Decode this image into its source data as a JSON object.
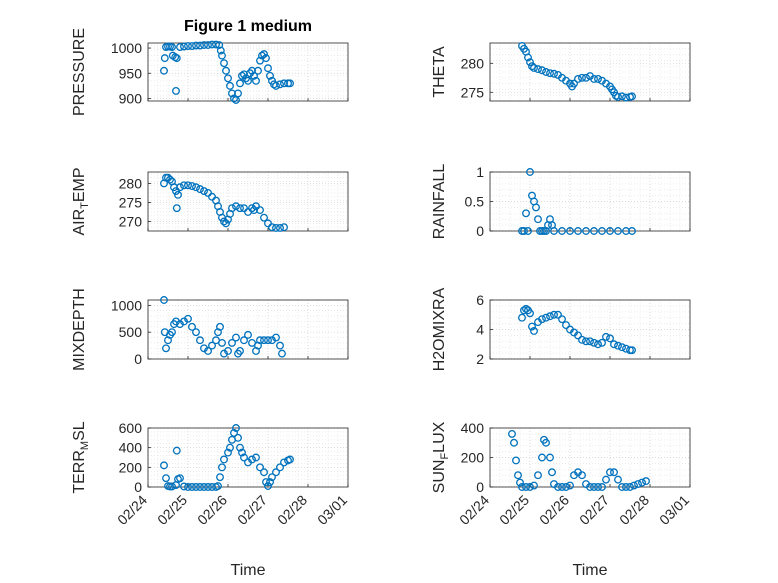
{
  "figure_title": "Figure 1 medium",
  "marker_color": "#0072BD",
  "x_axis": {
    "label": "Time",
    "tick_labels": [
      "02/24",
      "02/25",
      "02/26",
      "02/27",
      "02/28",
      "03/01"
    ]
  },
  "chart_data": [
    {
      "type": "scatter",
      "title": "Figure 1 medium",
      "ylabel": "PRESSURE",
      "ylim": [
        895,
        1010
      ],
      "yticks": [
        900,
        950,
        1000
      ],
      "grid": true,
      "x_unit": "days",
      "points": [
        [
          0.4,
          955
        ],
        [
          0.42,
          980
        ],
        [
          0.45,
          1002
        ],
        [
          0.5,
          1003
        ],
        [
          0.55,
          1003
        ],
        [
          0.6,
          1002
        ],
        [
          0.62,
          985
        ],
        [
          0.68,
          982
        ],
        [
          0.72,
          980
        ],
        [
          0.7,
          915
        ],
        [
          0.8,
          1002
        ],
        [
          0.9,
          1003
        ],
        [
          1.0,
          1004
        ],
        [
          1.1,
          1004
        ],
        [
          1.2,
          1005
        ],
        [
          1.3,
          1005
        ],
        [
          1.4,
          1006
        ],
        [
          1.5,
          1006
        ],
        [
          1.6,
          1007
        ],
        [
          1.7,
          1007
        ],
        [
          1.78,
          1006
        ],
        [
          1.82,
          995
        ],
        [
          1.85,
          985
        ],
        [
          1.9,
          970
        ],
        [
          1.95,
          955
        ],
        [
          2.0,
          940
        ],
        [
          2.05,
          925
        ],
        [
          2.1,
          910
        ],
        [
          2.15,
          900
        ],
        [
          2.2,
          897
        ],
        [
          2.25,
          910
        ],
        [
          2.3,
          930
        ],
        [
          2.35,
          945
        ],
        [
          2.4,
          948
        ],
        [
          2.45,
          940
        ],
        [
          2.5,
          935
        ],
        [
          2.55,
          950
        ],
        [
          2.6,
          955
        ],
        [
          2.65,
          945
        ],
        [
          2.7,
          935
        ],
        [
          2.75,
          955
        ],
        [
          2.8,
          975
        ],
        [
          2.85,
          985
        ],
        [
          2.9,
          988
        ],
        [
          2.95,
          980
        ],
        [
          3.0,
          960
        ],
        [
          3.05,
          945
        ],
        [
          3.1,
          935
        ],
        [
          3.15,
          928
        ],
        [
          3.2,
          925
        ],
        [
          3.3,
          928
        ],
        [
          3.4,
          930
        ],
        [
          3.5,
          930
        ],
        [
          3.55,
          930
        ]
      ]
    },
    {
      "type": "scatter",
      "ylabel": "THETA",
      "ylim": [
        273.5,
        283.5
      ],
      "yticks": [
        275,
        280
      ],
      "grid": true,
      "x_unit": "days",
      "points": [
        [
          0.8,
          283
        ],
        [
          0.85,
          282.5
        ],
        [
          0.9,
          282
        ],
        [
          0.95,
          281
        ],
        [
          1.0,
          280.2
        ],
        [
          1.05,
          279.5
        ],
        [
          1.1,
          279.2
        ],
        [
          1.2,
          279
        ],
        [
          1.3,
          278.8
        ],
        [
          1.4,
          278.5
        ],
        [
          1.5,
          278.3
        ],
        [
          1.6,
          278.2
        ],
        [
          1.7,
          278
        ],
        [
          1.8,
          277.5
        ],
        [
          1.9,
          277
        ],
        [
          2.0,
          276.5
        ],
        [
          2.05,
          276
        ],
        [
          2.1,
          276.5
        ],
        [
          2.2,
          277.3
        ],
        [
          2.3,
          277.5
        ],
        [
          2.4,
          277.5
        ],
        [
          2.5,
          277.8
        ],
        [
          2.6,
          277.3
        ],
        [
          2.7,
          277.3
        ],
        [
          2.8,
          277
        ],
        [
          2.9,
          276.5
        ],
        [
          3.0,
          276
        ],
        [
          3.05,
          275.5
        ],
        [
          3.1,
          275
        ],
        [
          3.15,
          274.4
        ],
        [
          3.2,
          274.2
        ],
        [
          3.3,
          274.3
        ],
        [
          3.4,
          274.1
        ],
        [
          3.5,
          274.2
        ],
        [
          3.55,
          274.3
        ]
      ]
    },
    {
      "type": "scatter",
      "ylabel": "AIR_TEMP",
      "ylim": [
        267.5,
        283
      ],
      "yticks": [
        270,
        275,
        280
      ],
      "grid": true,
      "x_unit": "days",
      "points": [
        [
          0.4,
          280
        ],
        [
          0.45,
          281.5
        ],
        [
          0.5,
          281.5
        ],
        [
          0.55,
          281
        ],
        [
          0.6,
          280.5
        ],
        [
          0.65,
          279
        ],
        [
          0.7,
          278
        ],
        [
          0.72,
          273.5
        ],
        [
          0.75,
          277
        ],
        [
          0.8,
          279
        ],
        [
          0.9,
          279.5
        ],
        [
          1.0,
          279.5
        ],
        [
          1.1,
          279.3
        ],
        [
          1.2,
          279
        ],
        [
          1.3,
          278.5
        ],
        [
          1.4,
          278
        ],
        [
          1.5,
          277.5
        ],
        [
          1.6,
          276.5
        ],
        [
          1.7,
          275.5
        ],
        [
          1.75,
          274
        ],
        [
          1.8,
          272.5
        ],
        [
          1.85,
          271
        ],
        [
          1.9,
          270
        ],
        [
          1.95,
          269.5
        ],
        [
          2.0,
          270.5
        ],
        [
          2.05,
          272
        ],
        [
          2.1,
          273.5
        ],
        [
          2.2,
          274
        ],
        [
          2.3,
          273.5
        ],
        [
          2.4,
          273.5
        ],
        [
          2.5,
          272.5
        ],
        [
          2.6,
          273.5
        ],
        [
          2.65,
          273
        ],
        [
          2.7,
          274
        ],
        [
          2.8,
          273
        ],
        [
          2.9,
          271
        ],
        [
          3.0,
          269.5
        ],
        [
          3.1,
          268.5
        ],
        [
          3.2,
          268.3
        ],
        [
          3.3,
          268.3
        ],
        [
          3.4,
          268.5
        ]
      ]
    },
    {
      "type": "scatter",
      "ylabel": "RAINFALL",
      "ylim": [
        0,
        1
      ],
      "yticks": [
        0,
        0.5,
        1
      ],
      "grid": true,
      "x_unit": "days",
      "points": [
        [
          0.8,
          0
        ],
        [
          0.85,
          0
        ],
        [
          0.9,
          0.3
        ],
        [
          0.95,
          0
        ],
        [
          1.0,
          1.0
        ],
        [
          1.05,
          0.6
        ],
        [
          1.1,
          0.5
        ],
        [
          1.15,
          0.4
        ],
        [
          1.2,
          0.2
        ],
        [
          1.25,
          0
        ],
        [
          1.3,
          0
        ],
        [
          1.35,
          0
        ],
        [
          1.4,
          0
        ],
        [
          1.45,
          0.1
        ],
        [
          1.5,
          0.2
        ],
        [
          1.55,
          0.1
        ],
        [
          1.6,
          0
        ],
        [
          1.8,
          0
        ],
        [
          2.0,
          0
        ],
        [
          2.2,
          0
        ],
        [
          2.4,
          0
        ],
        [
          2.6,
          0
        ],
        [
          2.8,
          0
        ],
        [
          3.0,
          0
        ],
        [
          3.2,
          0
        ],
        [
          3.4,
          0
        ],
        [
          3.55,
          0
        ]
      ]
    },
    {
      "type": "scatter",
      "ylabel": "MIXDEPTH",
      "ylim": [
        0,
        1100
      ],
      "yticks": [
        0,
        500,
        1000
      ],
      "grid": true,
      "x_unit": "days",
      "points": [
        [
          0.4,
          1100
        ],
        [
          0.42,
          500
        ],
        [
          0.45,
          200
        ],
        [
          0.5,
          350
        ],
        [
          0.55,
          450
        ],
        [
          0.6,
          500
        ],
        [
          0.65,
          650
        ],
        [
          0.7,
          700
        ],
        [
          0.8,
          650
        ],
        [
          0.9,
          700
        ],
        [
          1.0,
          750
        ],
        [
          1.1,
          600
        ],
        [
          1.2,
          500
        ],
        [
          1.3,
          350
        ],
        [
          1.4,
          200
        ],
        [
          1.5,
          150
        ],
        [
          1.6,
          250
        ],
        [
          1.7,
          350
        ],
        [
          1.75,
          500
        ],
        [
          1.8,
          600
        ],
        [
          1.85,
          300
        ],
        [
          1.9,
          100
        ],
        [
          2.0,
          150
        ],
        [
          2.1,
          300
        ],
        [
          2.2,
          400
        ],
        [
          2.25,
          100
        ],
        [
          2.3,
          150
        ],
        [
          2.4,
          350
        ],
        [
          2.5,
          450
        ],
        [
          2.6,
          300
        ],
        [
          2.7,
          150
        ],
        [
          2.75,
          250
        ],
        [
          2.8,
          350
        ],
        [
          2.9,
          350
        ],
        [
          3.0,
          350
        ],
        [
          3.1,
          350
        ],
        [
          3.2,
          400
        ],
        [
          3.3,
          250
        ],
        [
          3.35,
          100
        ]
      ]
    },
    {
      "type": "scatter",
      "ylabel": "H2OMIXRA",
      "ylim": [
        2,
        6
      ],
      "yticks": [
        2,
        4,
        6
      ],
      "grid": true,
      "x_unit": "days",
      "points": [
        [
          0.8,
          4.8
        ],
        [
          0.85,
          5.3
        ],
        [
          0.9,
          5.4
        ],
        [
          0.95,
          5.3
        ],
        [
          1.0,
          5.1
        ],
        [
          1.05,
          4.2
        ],
        [
          1.1,
          3.9
        ],
        [
          1.2,
          4.5
        ],
        [
          1.3,
          4.7
        ],
        [
          1.4,
          4.8
        ],
        [
          1.5,
          4.9
        ],
        [
          1.6,
          5.0
        ],
        [
          1.7,
          5.0
        ],
        [
          1.8,
          4.7
        ],
        [
          1.9,
          4.3
        ],
        [
          2.0,
          4.0
        ],
        [
          2.1,
          3.8
        ],
        [
          2.2,
          3.6
        ],
        [
          2.3,
          3.3
        ],
        [
          2.4,
          3.2
        ],
        [
          2.5,
          3.2
        ],
        [
          2.6,
          3.1
        ],
        [
          2.7,
          3.0
        ],
        [
          2.8,
          3.1
        ],
        [
          2.9,
          3.5
        ],
        [
          3.0,
          3.4
        ],
        [
          3.1,
          3.0
        ],
        [
          3.2,
          2.9
        ],
        [
          3.3,
          2.8
        ],
        [
          3.4,
          2.7
        ],
        [
          3.5,
          2.6
        ],
        [
          3.55,
          2.6
        ]
      ]
    },
    {
      "type": "scatter",
      "ylabel": "TERR_MSL",
      "ylim": [
        0,
        600
      ],
      "yticks": [
        0,
        200,
        400,
        600
      ],
      "grid": true,
      "x_unit": "days",
      "points": [
        [
          0.4,
          220
        ],
        [
          0.45,
          90
        ],
        [
          0.5,
          10
        ],
        [
          0.55,
          5
        ],
        [
          0.6,
          5
        ],
        [
          0.7,
          20
        ],
        [
          0.75,
          80
        ],
        [
          0.8,
          90
        ],
        [
          0.72,
          370
        ],
        [
          0.9,
          5
        ],
        [
          1.0,
          0
        ],
        [
          1.1,
          0
        ],
        [
          1.2,
          0
        ],
        [
          1.3,
          0
        ],
        [
          1.4,
          0
        ],
        [
          1.5,
          0
        ],
        [
          1.6,
          0
        ],
        [
          1.7,
          0
        ],
        [
          1.75,
          10
        ],
        [
          1.8,
          100
        ],
        [
          1.85,
          200
        ],
        [
          1.9,
          280
        ],
        [
          2.0,
          350
        ],
        [
          2.05,
          400
        ],
        [
          2.1,
          480
        ],
        [
          2.15,
          550
        ],
        [
          2.2,
          600
        ],
        [
          2.25,
          500
        ],
        [
          2.3,
          400
        ],
        [
          2.35,
          350
        ],
        [
          2.4,
          300
        ],
        [
          2.5,
          250
        ],
        [
          2.6,
          280
        ],
        [
          2.7,
          300
        ],
        [
          2.8,
          200
        ],
        [
          2.9,
          150
        ],
        [
          2.95,
          50
        ],
        [
          3.0,
          10
        ],
        [
          3.05,
          50
        ],
        [
          3.1,
          100
        ],
        [
          3.2,
          150
        ],
        [
          3.3,
          200
        ],
        [
          3.4,
          250
        ],
        [
          3.5,
          270
        ],
        [
          3.55,
          280
        ]
      ]
    },
    {
      "type": "scatter",
      "ylabel": "SUN_FLUX",
      "ylim": [
        0,
        400
      ],
      "yticks": [
        0,
        200,
        400
      ],
      "grid": true,
      "x_unit": "days",
      "points": [
        [
          0.55,
          360
        ],
        [
          0.6,
          300
        ],
        [
          0.65,
          180
        ],
        [
          0.7,
          80
        ],
        [
          0.75,
          30
        ],
        [
          0.8,
          0
        ],
        [
          0.9,
          0
        ],
        [
          1.0,
          0
        ],
        [
          1.1,
          10
        ],
        [
          1.2,
          80
        ],
        [
          1.3,
          200
        ],
        [
          1.35,
          320
        ],
        [
          1.4,
          300
        ],
        [
          1.5,
          200
        ],
        [
          1.55,
          100
        ],
        [
          1.6,
          20
        ],
        [
          1.7,
          0
        ],
        [
          1.8,
          0
        ],
        [
          1.9,
          0
        ],
        [
          2.0,
          10
        ],
        [
          2.1,
          80
        ],
        [
          2.2,
          100
        ],
        [
          2.3,
          80
        ],
        [
          2.4,
          20
        ],
        [
          2.5,
          0
        ],
        [
          2.6,
          0
        ],
        [
          2.7,
          0
        ],
        [
          2.8,
          0
        ],
        [
          2.9,
          50
        ],
        [
          3.0,
          100
        ],
        [
          3.1,
          100
        ],
        [
          3.2,
          50
        ],
        [
          3.3,
          0
        ],
        [
          3.4,
          0
        ],
        [
          3.5,
          0
        ],
        [
          3.6,
          10
        ],
        [
          3.7,
          20
        ],
        [
          3.8,
          30
        ],
        [
          3.9,
          40
        ]
      ]
    }
  ]
}
